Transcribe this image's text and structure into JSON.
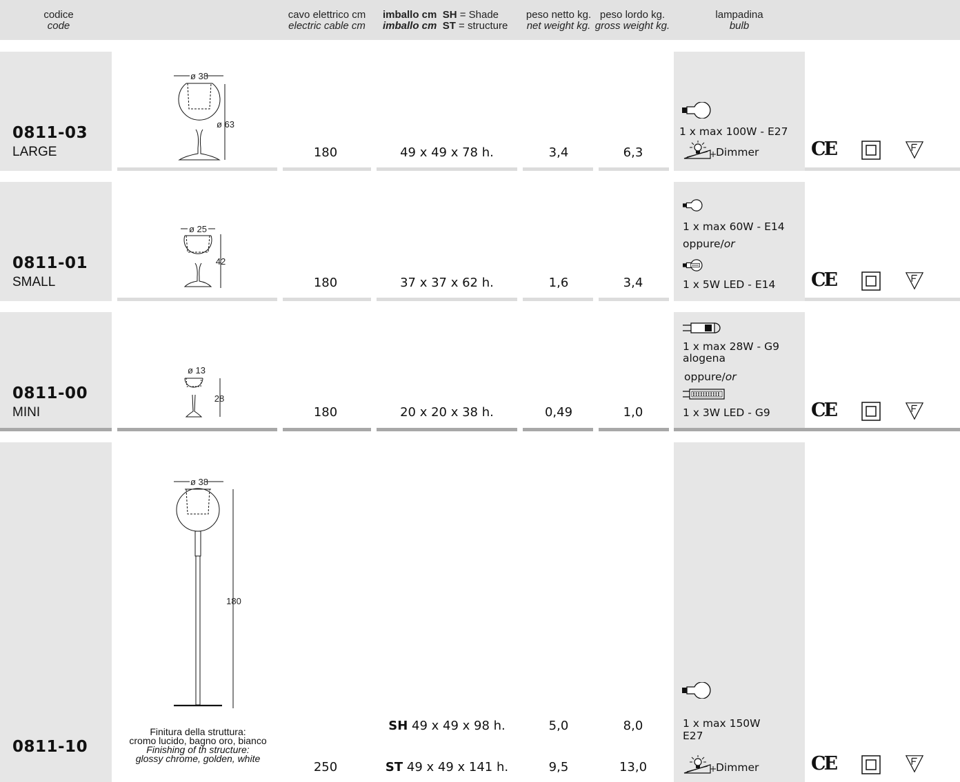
{
  "header": {
    "code_it": "codice",
    "code_en": "code",
    "cable_it": "cavo elettrico cm",
    "cable_en": "electric cable cm",
    "pack_it": "imballo cm",
    "pack_en": "imballo cm",
    "sh_key": "SH",
    "sh_text": "= Shade",
    "st_key": "ST",
    "st_text": "= structure",
    "net_it": "peso netto kg.",
    "net_en": "net weight kg.",
    "gross_it": "peso lordo kg.",
    "gross_en": "gross weight kg.",
    "bulb_it": "lampadina",
    "bulb_en": "bulb"
  },
  "rows": [
    {
      "code": "0811-03",
      "size": "LARGE",
      "dim_d": "ø 38",
      "dim_h": "ø 63",
      "cable": "180",
      "pack": "49 x 49 x 78 h.",
      "net": "3,4",
      "gross": "6,3",
      "bulb1": "1 x max 100W - E27",
      "dimmer": "Dimmer"
    },
    {
      "code": "0811-01",
      "size": "SMALL",
      "dim_d": "ø 25",
      "dim_h": "42",
      "cable": "180",
      "pack": "37 x 37 x 62 h.",
      "net": "1,6",
      "gross": "3,4",
      "bulb1": "1 x max 60W - E14",
      "or_it": "oppure/",
      "or_en": "or",
      "bulb2": "1 x 5W LED - E14"
    },
    {
      "code": "0811-00",
      "size": "MINI",
      "dim_d": "ø 13",
      "dim_h": "28",
      "cable": "180",
      "pack": "20 x 20 x 38 h.",
      "net": "0,49",
      "gross": "1,0",
      "bulb1a": "1 x max 28W - G9",
      "bulb1b": "alogena",
      "or_it": "oppure/",
      "or_en": "or",
      "bulb2": "1 x 3W LED - G9"
    },
    {
      "code": "0811-10",
      "dim_d": "ø 38",
      "dim_h": "180",
      "finish_it_1": "Finitura della struttura:",
      "finish_it_2": "cromo lucido, bagno oro, bianco",
      "finish_en_1": "Finishing of th structure:",
      "finish_en_2": "glossy chrome, golden, white",
      "cable": "250",
      "sh_key": "SH",
      "sh_pack": "49 x 49 x 98 h.",
      "sh_net": "5,0",
      "sh_gross": "8,0",
      "st_key": "ST",
      "st_pack": "49 x 49 x 141 h.",
      "st_net": "9,5",
      "st_gross": "13,0",
      "bulb1a": "1 x max 150W",
      "bulb1b": "E27",
      "dimmer": "Dimmer"
    }
  ],
  "certifications": [
    "ce-mark-icon",
    "class-ii-icon",
    "f-mark-icon"
  ]
}
